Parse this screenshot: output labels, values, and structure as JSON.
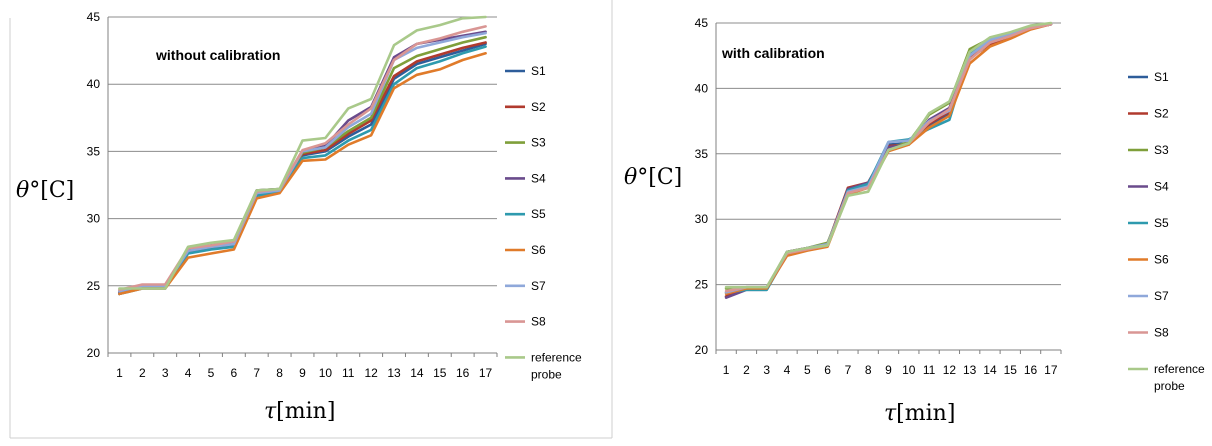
{
  "chart_data": [
    {
      "type": "line",
      "annotation": "without calibration",
      "xlabel_var": "τ",
      "xlabel_unit": "[min]",
      "ylabel_var": "θ",
      "ylabel_unit": "°[C]",
      "x": [
        1,
        2,
        3,
        4,
        5,
        6,
        7,
        8,
        9,
        10,
        11,
        12,
        13,
        14,
        15,
        16,
        17
      ],
      "ylim": [
        20,
        45
      ],
      "yticks": [
        20,
        25,
        30,
        35,
        40,
        45
      ],
      "legend_position": "right",
      "grid": true,
      "series": [
        {
          "name": "S1",
          "color": "#2E5D9A",
          "values": [
            24.4,
            24.9,
            24.9,
            27.5,
            27.8,
            28.0,
            31.8,
            32.1,
            34.7,
            35.0,
            36.1,
            37.0,
            40.4,
            41.5,
            42.0,
            42.5,
            43.0
          ]
        },
        {
          "name": "S2",
          "color": "#B03A2E",
          "values": [
            24.4,
            24.9,
            24.9,
            27.6,
            27.9,
            28.1,
            31.9,
            32.1,
            34.8,
            35.1,
            36.3,
            37.3,
            40.6,
            41.7,
            42.2,
            42.7,
            43.1
          ]
        },
        {
          "name": "S3",
          "color": "#7F9F3A",
          "values": [
            24.6,
            25.0,
            25.0,
            27.7,
            28.0,
            28.3,
            32.1,
            32.2,
            34.9,
            35.3,
            36.5,
            37.5,
            41.2,
            42.1,
            42.6,
            43.1,
            43.5
          ]
        },
        {
          "name": "S4",
          "color": "#6A4B8C",
          "values": [
            24.5,
            25.0,
            25.0,
            27.7,
            28.0,
            28.2,
            32.1,
            32.2,
            35.0,
            35.4,
            37.3,
            38.3,
            42.0,
            43.0,
            43.3,
            43.6,
            43.9
          ]
        },
        {
          "name": "S5",
          "color": "#2E9AAE",
          "values": [
            24.4,
            24.8,
            24.8,
            27.4,
            27.7,
            27.9,
            31.7,
            32.0,
            34.5,
            34.7,
            35.8,
            36.6,
            40.0,
            41.2,
            41.7,
            42.3,
            42.8
          ]
        },
        {
          "name": "S6",
          "color": "#E07B2A",
          "values": [
            24.4,
            24.8,
            24.8,
            27.1,
            27.4,
            27.7,
            31.5,
            31.9,
            34.3,
            34.4,
            35.5,
            36.2,
            39.7,
            40.7,
            41.1,
            41.8,
            42.3
          ]
        },
        {
          "name": "S7",
          "color": "#8FA8DA",
          "values": [
            24.6,
            25.0,
            25.0,
            27.6,
            27.9,
            28.1,
            31.9,
            32.1,
            35.0,
            35.3,
            36.8,
            37.8,
            41.8,
            42.7,
            43.1,
            43.5,
            43.8
          ]
        },
        {
          "name": "S8",
          "color": "#D99694",
          "values": [
            24.7,
            25.1,
            25.1,
            27.8,
            28.0,
            28.3,
            32.0,
            32.2,
            35.1,
            35.6,
            37.0,
            38.2,
            41.8,
            43.0,
            43.4,
            43.9,
            44.3
          ]
        },
        {
          "name": "reference probe",
          "color": "#A9C98A",
          "values": [
            24.8,
            24.8,
            24.8,
            27.9,
            28.2,
            28.4,
            32.1,
            32.2,
            35.8,
            36.0,
            38.2,
            38.9,
            42.9,
            44.0,
            44.4,
            44.9,
            45.0
          ]
        }
      ]
    },
    {
      "type": "line",
      "annotation": "with calibration",
      "xlabel_var": "τ",
      "xlabel_unit": "[min]",
      "ylabel_var": "θ",
      "ylabel_unit": "°[C]",
      "x": [
        1,
        2,
        3,
        4,
        5,
        6,
        7,
        8,
        9,
        10,
        11,
        12,
        13,
        14,
        15,
        16,
        17
      ],
      "ylim": [
        20,
        45
      ],
      "yticks": [
        20,
        25,
        30,
        35,
        40,
        45
      ],
      "legend_position": "right",
      "grid": true,
      "series": [
        {
          "name": "S1",
          "color": "#2E5D9A",
          "values": [
            24.1,
            24.7,
            24.7,
            27.5,
            27.8,
            28.1,
            32.3,
            32.7,
            35.7,
            35.8,
            37.2,
            38.0,
            42.3,
            43.4,
            43.9,
            44.6,
            44.9
          ]
        },
        {
          "name": "S2",
          "color": "#B03A2E",
          "values": [
            24.1,
            24.7,
            24.7,
            27.5,
            27.8,
            28.1,
            32.4,
            32.8,
            35.6,
            35.7,
            37.3,
            38.2,
            42.3,
            43.4,
            43.9,
            44.6,
            44.9
          ]
        },
        {
          "name": "S3",
          "color": "#7F9F3A",
          "values": [
            24.7,
            24.7,
            24.7,
            27.4,
            27.8,
            28.2,
            32.0,
            32.4,
            35.4,
            35.9,
            38.0,
            38.9,
            43.0,
            43.8,
            44.2,
            44.7,
            44.9
          ]
        },
        {
          "name": "S4",
          "color": "#6A4B8C",
          "values": [
            24.0,
            24.6,
            24.6,
            27.5,
            27.8,
            28.0,
            32.3,
            32.8,
            35.5,
            35.7,
            37.6,
            38.5,
            42.6,
            43.6,
            44.1,
            44.6,
            44.9
          ]
        },
        {
          "name": "S5",
          "color": "#2E9AAE",
          "values": [
            24.4,
            24.6,
            24.6,
            27.3,
            27.7,
            28.0,
            32.2,
            32.7,
            35.9,
            36.1,
            36.9,
            37.6,
            42.7,
            43.6,
            44.1,
            44.7,
            44.9
          ]
        },
        {
          "name": "S6",
          "color": "#E07B2A",
          "values": [
            24.3,
            24.7,
            24.7,
            27.2,
            27.6,
            27.9,
            31.9,
            32.4,
            35.2,
            35.7,
            37.0,
            37.9,
            41.9,
            43.2,
            43.8,
            44.5,
            44.9
          ]
        },
        {
          "name": "S7",
          "color": "#8FA8DA",
          "values": [
            24.4,
            24.8,
            24.8,
            27.4,
            27.8,
            28.1,
            32.1,
            32.5,
            35.9,
            36.0,
            37.5,
            38.3,
            42.5,
            43.7,
            44.2,
            44.7,
            44.9
          ]
        },
        {
          "name": "S8",
          "color": "#D99694",
          "values": [
            24.5,
            24.8,
            24.8,
            27.4,
            27.7,
            28.0,
            32.0,
            32.4,
            35.3,
            35.8,
            37.4,
            38.4,
            42.2,
            43.5,
            44.0,
            44.6,
            44.9
          ]
        },
        {
          "name": "reference probe",
          "color": "#A9C98A",
          "values": [
            24.8,
            24.8,
            24.8,
            27.5,
            27.8,
            28.0,
            31.8,
            32.1,
            35.3,
            35.8,
            38.1,
            39.0,
            42.8,
            43.9,
            44.3,
            44.8,
            45.0
          ]
        }
      ]
    }
  ]
}
